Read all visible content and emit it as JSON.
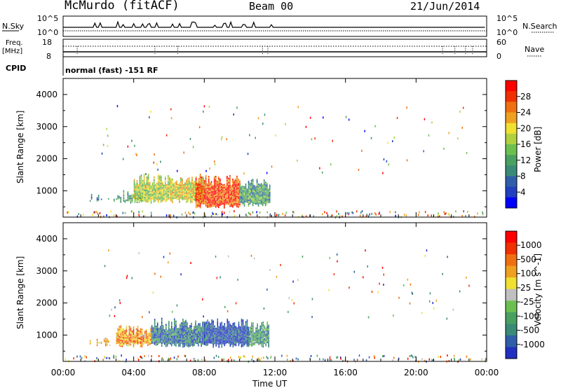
{
  "header": {
    "station": "McMurdo (fitACF)",
    "beam": "Beam 00",
    "date": "21/Jun/2014"
  },
  "top_panels": {
    "nsky_label": "N.Sky",
    "nsky_ticks": [
      "10^5",
      "10^0"
    ],
    "nsearch_label": "N.Search",
    "nsearch_ticks": [
      "10^5",
      "10^0"
    ],
    "freq_label": "Freq.",
    "freq_unit": "[MHz]",
    "freq_ticks": [
      "18",
      "8"
    ],
    "nave_label": "Nave",
    "nave_ticks": [
      "60",
      "0"
    ],
    "cpid_label": "CPID",
    "cpid_value": "normal (fast) -151 RF"
  },
  "chart_data": [
    {
      "type": "heatmap",
      "name": "power",
      "ylabel": "Slant Range [km]",
      "y_ticks": [
        "4000",
        "3000",
        "2000",
        "1000"
      ],
      "ylim": [
        180,
        4500
      ],
      "xlim": [
        0,
        24
      ],
      "colorbar": {
        "label": "Power [dB]",
        "ticks": [
          "28",
          "24",
          "20",
          "16",
          "12",
          "8",
          "4"
        ],
        "colors": [
          "#0000ff",
          "#2040c0",
          "#2e5ea8",
          "#3a8a78",
          "#4aa060",
          "#6cc050",
          "#b0d040",
          "#f0e030",
          "#f0a020",
          "#f07010",
          "#f03000",
          "#ff0000"
        ]
      },
      "regions": [
        {
          "t0": 1.5,
          "t1": 3.0,
          "r0": 650,
          "r1": 900,
          "level": 0.3
        },
        {
          "t0": 3.0,
          "t1": 4.5,
          "r0": 600,
          "r1": 1000,
          "level": 0.4
        },
        {
          "t0": 4.0,
          "t1": 6.0,
          "r0": 600,
          "r1": 1500,
          "level": 0.55
        },
        {
          "t0": 6.0,
          "t1": 8.0,
          "r0": 600,
          "r1": 1450,
          "level": 0.6
        },
        {
          "t0": 7.5,
          "t1": 10.0,
          "r0": 450,
          "r1": 1500,
          "level": 0.85
        },
        {
          "t0": 10.0,
          "t1": 11.7,
          "r0": 500,
          "r1": 1400,
          "level": 0.35
        }
      ]
    },
    {
      "type": "heatmap",
      "name": "velocity",
      "ylabel": "Slant Range [km]",
      "y_ticks": [
        "4000",
        "3000",
        "2000",
        "1000"
      ],
      "ylim": [
        180,
        4500
      ],
      "xlim": [
        0,
        24
      ],
      "colorbar": {
        "label": "Velocity [m s^-1]",
        "ticks": [
          "1000",
          "500",
          "100",
          "25",
          "-25",
          "-100",
          "-500",
          "-1000"
        ],
        "colors": [
          "#2030c0",
          "#2e5ea8",
          "#3a8a78",
          "#4aa060",
          "#6cc050",
          "#c0c0c0",
          "#f0e030",
          "#f0a020",
          "#f07010",
          "#f03000",
          "#ff0000"
        ]
      },
      "regions": [
        {
          "t0": 1.5,
          "t1": 3.0,
          "r0": 650,
          "r1": 900,
          "level": 0.65
        },
        {
          "t0": 3.0,
          "t1": 5.0,
          "r0": 600,
          "r1": 1300,
          "level": 0.7
        },
        {
          "t0": 5.0,
          "t1": 8.0,
          "r0": 600,
          "r1": 1500,
          "level": 0.2
        },
        {
          "t0": 8.0,
          "t1": 10.5,
          "r0": 600,
          "r1": 1500,
          "level": 0.1
        },
        {
          "t0": 10.5,
          "t1": 11.7,
          "r0": 600,
          "r1": 1400,
          "level": 0.3
        }
      ]
    }
  ],
  "x_axis": {
    "ticks": [
      "00:00",
      "04:00",
      "08:00",
      "12:00",
      "16:00",
      "20:00",
      "00:00"
    ],
    "label": "Time UT"
  }
}
